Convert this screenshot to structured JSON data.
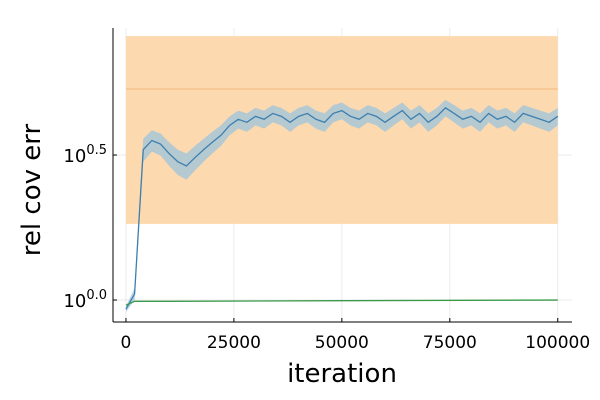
{
  "chart_data": {
    "type": "line",
    "xlabel": "iteration",
    "ylabel": "rel cov err",
    "xlim": [
      -3000,
      103300
    ],
    "ylim": [
      0.84,
      8.67
    ],
    "log_y": true,
    "grid": true,
    "xticks": [
      0,
      25000,
      50000,
      75000,
      100000
    ],
    "yticks": [
      {
        "value": 1,
        "label": "10^0.0"
      },
      {
        "value": 3.1623,
        "label": "10^0.5"
      }
    ],
    "reference_band": {
      "x": [
        0,
        100000
      ],
      "lower": 1.83,
      "upper": 8.13,
      "color": "#fdd9b0"
    },
    "reference_line": {
      "value": 5.34,
      "color": "#f5b97a"
    },
    "series": [
      {
        "color": "#3d7fae",
        "band_color": "#9cc3dc",
        "x": [
          0,
          2000,
          4000,
          6000,
          8000,
          10000,
          12000,
          14000,
          16000,
          18000,
          20000,
          22000,
          24000,
          26000,
          28000,
          30000,
          32000,
          34000,
          36000,
          38000,
          40000,
          42000,
          44000,
          46000,
          48000,
          50000,
          52000,
          54000,
          56000,
          58000,
          60000,
          62000,
          64000,
          66000,
          68000,
          70000,
          72000,
          74000,
          76000,
          78000,
          80000,
          82000,
          84000,
          86000,
          88000,
          90000,
          92000,
          94000,
          96000,
          98000,
          100000
        ],
        "values": [
          0.93,
          1.05,
          3.3,
          3.55,
          3.45,
          3.2,
          3.0,
          2.9,
          3.1,
          3.3,
          3.5,
          3.7,
          4.0,
          4.2,
          4.1,
          4.3,
          4.2,
          4.4,
          4.3,
          4.1,
          4.3,
          4.4,
          4.2,
          4.1,
          4.4,
          4.5,
          4.3,
          4.2,
          4.4,
          4.3,
          4.1,
          4.3,
          4.5,
          4.2,
          4.4,
          4.1,
          4.3,
          4.6,
          4.4,
          4.2,
          4.3,
          4.1,
          4.4,
          4.2,
          4.3,
          4.1,
          4.4,
          4.3,
          4.2,
          4.1,
          4.3
        ],
        "lower": [
          0.91,
          1.0,
          3.0,
          3.25,
          3.15,
          2.9,
          2.7,
          2.6,
          2.8,
          3.0,
          3.2,
          3.4,
          3.7,
          3.9,
          3.8,
          4.0,
          3.9,
          4.1,
          4.0,
          3.8,
          4.0,
          4.1,
          3.9,
          3.8,
          4.1,
          4.2,
          4.0,
          3.9,
          4.1,
          4.0,
          3.8,
          4.0,
          4.2,
          3.9,
          4.1,
          3.8,
          4.0,
          4.3,
          4.1,
          3.9,
          4.0,
          3.8,
          4.1,
          3.9,
          4.0,
          3.8,
          4.1,
          4.0,
          3.9,
          3.8,
          4.0
        ],
        "upper": [
          0.95,
          1.1,
          3.6,
          3.85,
          3.75,
          3.5,
          3.3,
          3.2,
          3.4,
          3.6,
          3.8,
          4.0,
          4.3,
          4.5,
          4.4,
          4.6,
          4.5,
          4.7,
          4.6,
          4.4,
          4.6,
          4.7,
          4.5,
          4.4,
          4.7,
          4.8,
          4.6,
          4.5,
          4.7,
          4.6,
          4.4,
          4.6,
          4.8,
          4.5,
          4.7,
          4.4,
          4.6,
          4.9,
          4.7,
          4.5,
          4.6,
          4.4,
          4.7,
          4.5,
          4.6,
          4.4,
          4.7,
          4.6,
          4.5,
          4.4,
          4.6
        ]
      },
      {
        "color": "#3a9a4a",
        "x": [
          0,
          2000,
          10000,
          50000,
          100000
        ],
        "values": [
          0.96,
          0.99,
          0.99,
          0.995,
          1.0
        ]
      }
    ]
  }
}
